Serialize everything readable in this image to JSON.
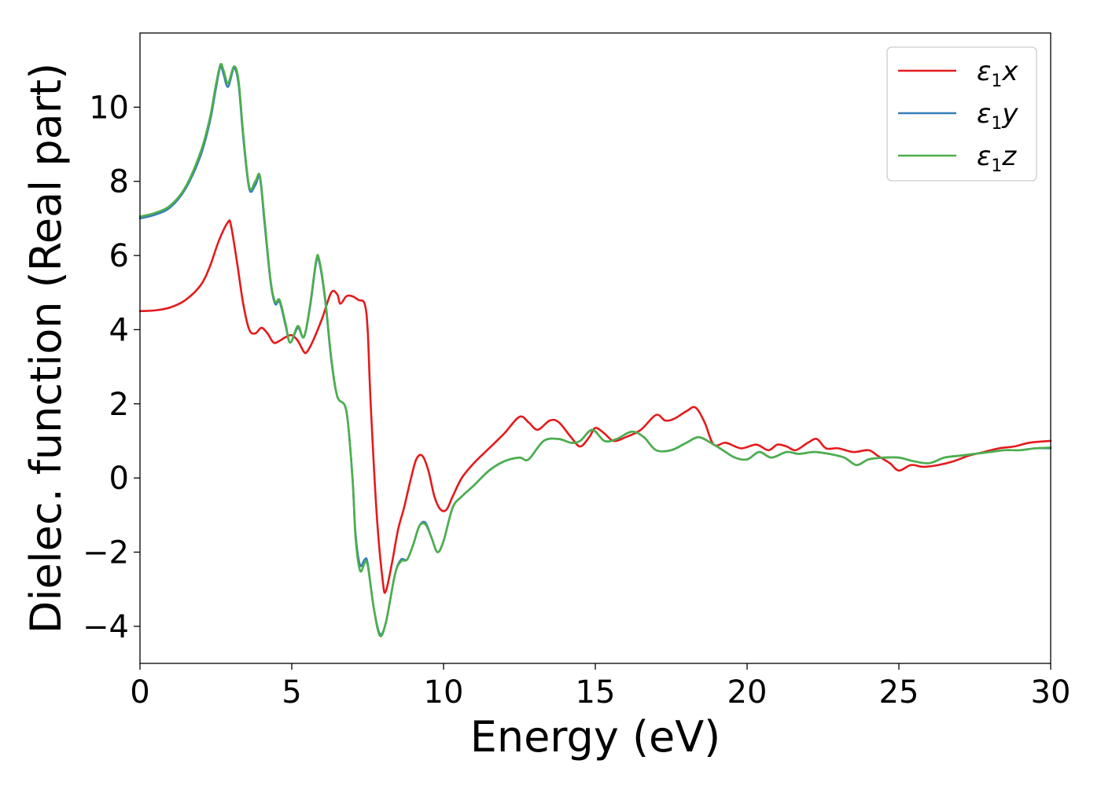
{
  "chart_data": {
    "type": "line",
    "xlabel": "Energy (eV)",
    "ylabel": "Dielec. function (Real part)",
    "xlim": [
      0,
      30
    ],
    "ylim": [
      -5,
      12
    ],
    "xticks": [
      0,
      5,
      10,
      15,
      20,
      25,
      30
    ],
    "xtick_labels": [
      "0",
      "5",
      "10",
      "15",
      "20",
      "25",
      "30"
    ],
    "yticks": [
      -4,
      -2,
      0,
      2,
      4,
      6,
      8,
      10
    ],
    "ytick_labels": [
      "−4",
      "−2",
      "0",
      "2",
      "4",
      "6",
      "8",
      "10"
    ],
    "grid": false,
    "legend_position": "top-right",
    "series": [
      {
        "name": "ε1x",
        "legend_main": "ε",
        "legend_sub": "1",
        "legend_var": "x",
        "color": "#e41a1c",
        "points": [
          [
            0,
            4.5
          ],
          [
            0.5,
            4.52
          ],
          [
            1,
            4.6
          ],
          [
            1.5,
            4.8
          ],
          [
            2,
            5.2
          ],
          [
            2.3,
            5.7
          ],
          [
            2.6,
            6.4
          ],
          [
            2.9,
            6.9
          ],
          [
            3.0,
            6.8
          ],
          [
            3.2,
            5.8
          ],
          [
            3.4,
            4.7
          ],
          [
            3.6,
            4.0
          ],
          [
            3.8,
            3.9
          ],
          [
            4.0,
            4.05
          ],
          [
            4.2,
            3.9
          ],
          [
            4.4,
            3.65
          ],
          [
            4.6,
            3.7
          ],
          [
            4.8,
            3.8
          ],
          [
            5.0,
            3.85
          ],
          [
            5.2,
            3.7
          ],
          [
            5.4,
            3.4
          ],
          [
            5.5,
            3.4
          ],
          [
            5.7,
            3.7
          ],
          [
            6.0,
            4.3
          ],
          [
            6.3,
            5.0
          ],
          [
            6.5,
            4.95
          ],
          [
            6.6,
            4.7
          ],
          [
            6.8,
            4.9
          ],
          [
            7.0,
            4.9
          ],
          [
            7.2,
            4.8
          ],
          [
            7.4,
            4.7
          ],
          [
            7.5,
            4.0
          ],
          [
            7.6,
            2.0
          ],
          [
            7.8,
            -1.0
          ],
          [
            8.0,
            -2.8
          ],
          [
            8.1,
            -3.05
          ],
          [
            8.3,
            -2.3
          ],
          [
            8.5,
            -1.4
          ],
          [
            8.7,
            -0.8
          ],
          [
            8.9,
            -0.1
          ],
          [
            9.1,
            0.5
          ],
          [
            9.3,
            0.6
          ],
          [
            9.5,
            0.2
          ],
          [
            9.7,
            -0.5
          ],
          [
            9.9,
            -0.85
          ],
          [
            10.1,
            -0.85
          ],
          [
            10.3,
            -0.5
          ],
          [
            10.6,
            0.0
          ],
          [
            11.0,
            0.4
          ],
          [
            11.5,
            0.8
          ],
          [
            12.0,
            1.2
          ],
          [
            12.5,
            1.65
          ],
          [
            12.8,
            1.5
          ],
          [
            13.1,
            1.3
          ],
          [
            13.5,
            1.55
          ],
          [
            13.8,
            1.5
          ],
          [
            14.2,
            1.1
          ],
          [
            14.5,
            0.85
          ],
          [
            14.8,
            1.1
          ],
          [
            15.0,
            1.35
          ],
          [
            15.3,
            1.2
          ],
          [
            15.6,
            1.0
          ],
          [
            16.0,
            1.1
          ],
          [
            16.5,
            1.3
          ],
          [
            17.0,
            1.7
          ],
          [
            17.3,
            1.55
          ],
          [
            17.6,
            1.6
          ],
          [
            18.0,
            1.8
          ],
          [
            18.3,
            1.9
          ],
          [
            18.6,
            1.5
          ],
          [
            18.9,
            0.9
          ],
          [
            19.3,
            0.95
          ],
          [
            19.8,
            0.8
          ],
          [
            20.3,
            0.9
          ],
          [
            20.7,
            0.75
          ],
          [
            21.0,
            0.9
          ],
          [
            21.3,
            0.85
          ],
          [
            21.6,
            0.75
          ],
          [
            22.0,
            0.95
          ],
          [
            22.3,
            1.05
          ],
          [
            22.6,
            0.8
          ],
          [
            23.0,
            0.8
          ],
          [
            23.5,
            0.7
          ],
          [
            24.0,
            0.75
          ],
          [
            24.3,
            0.6
          ],
          [
            24.7,
            0.4
          ],
          [
            25.0,
            0.2
          ],
          [
            25.4,
            0.35
          ],
          [
            25.8,
            0.3
          ],
          [
            26.3,
            0.35
          ],
          [
            26.8,
            0.45
          ],
          [
            27.3,
            0.6
          ],
          [
            27.8,
            0.7
          ],
          [
            28.3,
            0.8
          ],
          [
            28.8,
            0.85
          ],
          [
            29.3,
            0.95
          ],
          [
            30,
            1.0
          ]
        ]
      },
      {
        "name": "ε1y",
        "legend_main": "ε",
        "legend_sub": "1",
        "legend_var": "y",
        "color": "#377eb8",
        "points": [
          [
            0,
            7.0
          ],
          [
            0.5,
            7.1
          ],
          [
            1,
            7.3
          ],
          [
            1.5,
            7.8
          ],
          [
            2.0,
            8.7
          ],
          [
            2.3,
            9.6
          ],
          [
            2.5,
            10.5
          ],
          [
            2.65,
            11.1
          ],
          [
            2.75,
            10.9
          ],
          [
            2.9,
            10.55
          ],
          [
            3.1,
            11.05
          ],
          [
            3.25,
            10.6
          ],
          [
            3.4,
            9.2
          ],
          [
            3.6,
            7.8
          ],
          [
            3.8,
            7.9
          ],
          [
            3.95,
            8.1
          ],
          [
            4.1,
            6.9
          ],
          [
            4.3,
            5.3
          ],
          [
            4.45,
            4.7
          ],
          [
            4.6,
            4.75
          ],
          [
            4.8,
            4.1
          ],
          [
            4.95,
            3.65
          ],
          [
            5.2,
            4.05
          ],
          [
            5.4,
            3.8
          ],
          [
            5.6,
            4.6
          ],
          [
            5.8,
            5.8
          ],
          [
            5.9,
            5.85
          ],
          [
            6.1,
            4.8
          ],
          [
            6.3,
            3.2
          ],
          [
            6.5,
            2.2
          ],
          [
            6.8,
            1.8
          ],
          [
            7.0,
            0.0
          ],
          [
            7.1,
            -1.5
          ],
          [
            7.25,
            -2.35
          ],
          [
            7.4,
            -2.2
          ],
          [
            7.5,
            -2.3
          ],
          [
            7.7,
            -3.5
          ],
          [
            7.9,
            -4.2
          ],
          [
            8.1,
            -3.9
          ],
          [
            8.4,
            -2.6
          ],
          [
            8.6,
            -2.2
          ],
          [
            8.8,
            -2.2
          ],
          [
            9.0,
            -1.8
          ],
          [
            9.2,
            -1.3
          ],
          [
            9.4,
            -1.2
          ],
          [
            9.6,
            -1.6
          ],
          [
            9.8,
            -2.0
          ],
          [
            10.0,
            -1.7
          ],
          [
            10.3,
            -0.8
          ],
          [
            10.6,
            -0.5
          ],
          [
            11.0,
            -0.2
          ],
          [
            11.5,
            0.2
          ],
          [
            12.0,
            0.45
          ],
          [
            12.5,
            0.55
          ],
          [
            12.8,
            0.5
          ],
          [
            13.3,
            1.0
          ],
          [
            13.8,
            1.05
          ],
          [
            14.2,
            0.95
          ],
          [
            14.5,
            1.0
          ],
          [
            14.9,
            1.3
          ],
          [
            15.3,
            1.0
          ],
          [
            15.7,
            1.05
          ],
          [
            16.2,
            1.25
          ],
          [
            16.6,
            1.1
          ],
          [
            17.0,
            0.75
          ],
          [
            17.5,
            0.75
          ],
          [
            18.0,
            0.95
          ],
          [
            18.4,
            1.1
          ],
          [
            18.8,
            0.95
          ],
          [
            19.2,
            0.75
          ],
          [
            19.6,
            0.55
          ],
          [
            20.0,
            0.5
          ],
          [
            20.4,
            0.7
          ],
          [
            20.8,
            0.55
          ],
          [
            21.3,
            0.7
          ],
          [
            21.7,
            0.65
          ],
          [
            22.2,
            0.7
          ],
          [
            22.7,
            0.65
          ],
          [
            23.2,
            0.55
          ],
          [
            23.6,
            0.35
          ],
          [
            24.0,
            0.5
          ],
          [
            24.5,
            0.55
          ],
          [
            25.0,
            0.55
          ],
          [
            25.5,
            0.45
          ],
          [
            26.0,
            0.4
          ],
          [
            26.5,
            0.55
          ],
          [
            27.0,
            0.6
          ],
          [
            27.5,
            0.65
          ],
          [
            28.0,
            0.7
          ],
          [
            28.5,
            0.75
          ],
          [
            29.0,
            0.75
          ],
          [
            29.5,
            0.8
          ],
          [
            30,
            0.8
          ]
        ]
      },
      {
        "name": "ε1z",
        "legend_main": "ε",
        "legend_sub": "1",
        "legend_var": "z",
        "color": "#4daf4a",
        "points": [
          [
            0,
            7.05
          ],
          [
            0.5,
            7.15
          ],
          [
            1,
            7.35
          ],
          [
            1.5,
            7.85
          ],
          [
            2.0,
            8.8
          ],
          [
            2.3,
            9.7
          ],
          [
            2.5,
            10.6
          ],
          [
            2.65,
            11.15
          ],
          [
            2.75,
            11.0
          ],
          [
            2.9,
            10.65
          ],
          [
            3.1,
            11.1
          ],
          [
            3.25,
            10.7
          ],
          [
            3.4,
            9.3
          ],
          [
            3.6,
            7.85
          ],
          [
            3.8,
            8.0
          ],
          [
            3.95,
            8.15
          ],
          [
            4.1,
            7.0
          ],
          [
            4.3,
            5.35
          ],
          [
            4.45,
            4.75
          ],
          [
            4.6,
            4.8
          ],
          [
            4.8,
            4.15
          ],
          [
            4.95,
            3.65
          ],
          [
            5.2,
            4.1
          ],
          [
            5.4,
            3.8
          ],
          [
            5.6,
            4.65
          ],
          [
            5.8,
            5.85
          ],
          [
            5.9,
            5.9
          ],
          [
            6.1,
            4.85
          ],
          [
            6.3,
            3.25
          ],
          [
            6.5,
            2.2
          ],
          [
            6.8,
            1.8
          ],
          [
            7.0,
            0.0
          ],
          [
            7.1,
            -1.6
          ],
          [
            7.25,
            -2.5
          ],
          [
            7.4,
            -2.3
          ],
          [
            7.5,
            -2.35
          ],
          [
            7.7,
            -3.5
          ],
          [
            7.9,
            -4.25
          ],
          [
            8.1,
            -3.9
          ],
          [
            8.4,
            -2.6
          ],
          [
            8.6,
            -2.25
          ],
          [
            8.8,
            -2.2
          ],
          [
            9.0,
            -1.8
          ],
          [
            9.2,
            -1.3
          ],
          [
            9.4,
            -1.25
          ],
          [
            9.6,
            -1.6
          ],
          [
            9.8,
            -2.0
          ],
          [
            10.0,
            -1.7
          ],
          [
            10.3,
            -0.8
          ],
          [
            10.6,
            -0.5
          ],
          [
            11.0,
            -0.2
          ],
          [
            11.5,
            0.2
          ],
          [
            12.0,
            0.45
          ],
          [
            12.5,
            0.55
          ],
          [
            12.8,
            0.5
          ],
          [
            13.3,
            1.0
          ],
          [
            13.8,
            1.05
          ],
          [
            14.2,
            0.95
          ],
          [
            14.5,
            1.0
          ],
          [
            14.9,
            1.3
          ],
          [
            15.3,
            1.0
          ],
          [
            15.7,
            1.05
          ],
          [
            16.2,
            1.25
          ],
          [
            16.6,
            1.1
          ],
          [
            17.0,
            0.75
          ],
          [
            17.5,
            0.75
          ],
          [
            18.0,
            0.95
          ],
          [
            18.4,
            1.1
          ],
          [
            18.8,
            0.95
          ],
          [
            19.2,
            0.75
          ],
          [
            19.6,
            0.55
          ],
          [
            20.0,
            0.5
          ],
          [
            20.4,
            0.7
          ],
          [
            20.8,
            0.55
          ],
          [
            21.3,
            0.7
          ],
          [
            21.7,
            0.65
          ],
          [
            22.2,
            0.7
          ],
          [
            22.7,
            0.65
          ],
          [
            23.2,
            0.55
          ],
          [
            23.6,
            0.35
          ],
          [
            24.0,
            0.5
          ],
          [
            24.5,
            0.55
          ],
          [
            25.0,
            0.55
          ],
          [
            25.5,
            0.45
          ],
          [
            26.0,
            0.4
          ],
          [
            26.5,
            0.55
          ],
          [
            27.0,
            0.6
          ],
          [
            27.5,
            0.65
          ],
          [
            28.0,
            0.7
          ],
          [
            28.5,
            0.75
          ],
          [
            29.0,
            0.75
          ],
          [
            29.5,
            0.8
          ],
          [
            30,
            0.82
          ]
        ]
      }
    ]
  }
}
